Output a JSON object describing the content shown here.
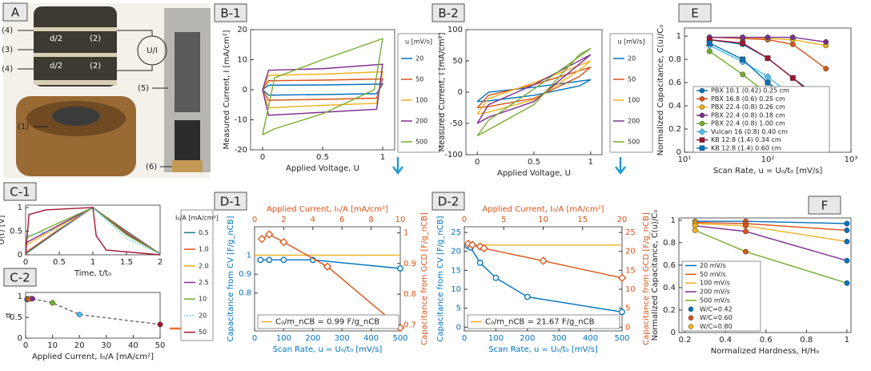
{
  "photo": {
    "panel": "A",
    "labels": [
      "(4)",
      "(3)",
      "(4)",
      "(1)",
      "(5)",
      "(6)",
      "d/2",
      "(2)",
      "d/2",
      "(2)",
      "U/I"
    ]
  },
  "chart_data": [
    {
      "type": "line",
      "panel": "B-1",
      "xlabel": "Applied Voltage, U",
      "ylabel": "Measured Current, I [mA/cm²]",
      "xlim": [
        -0.1,
        1.1
      ],
      "xticks": [
        0,
        0.5,
        1
      ],
      "ylim": [
        -20,
        20
      ],
      "yticks": [
        -20,
        -10,
        0,
        10,
        20
      ],
      "legend_title": "u [mV/s]",
      "series": [
        {
          "name": "20",
          "color": "#0072bd",
          "x": [
            0,
            0.05,
            0.5,
            1,
            0.95,
            0.5,
            0.05,
            0
          ],
          "values": [
            0,
            1.5,
            1.6,
            1.9,
            -1.3,
            -1.6,
            -1.8,
            0
          ]
        },
        {
          "name": "50",
          "color": "#d95319",
          "x": [
            0,
            0.05,
            0.5,
            1,
            0.95,
            0.5,
            0.05,
            0
          ],
          "values": [
            0,
            3,
            3.2,
            3.6,
            -2.8,
            -3.2,
            -3.5,
            0
          ]
        },
        {
          "name": "100",
          "color": "#edb120",
          "x": [
            0,
            0.05,
            0.5,
            1,
            0.95,
            0.5,
            0.05,
            0
          ],
          "values": [
            0,
            4.8,
            5.2,
            6,
            -4.5,
            -5.2,
            -6,
            0
          ]
        },
        {
          "name": "200",
          "color": "#7e2f8e",
          "x": [
            0,
            0.05,
            0.5,
            1,
            0.95,
            0.5,
            0.05,
            0
          ],
          "values": [
            0,
            6.5,
            7,
            8.5,
            -6.5,
            -7.5,
            -8.5,
            0
          ]
        },
        {
          "name": "500",
          "color": "#77ac30",
          "x": [
            0,
            0.1,
            0.5,
            1,
            0.93,
            0.5,
            0.1,
            0
          ],
          "values": [
            -15,
            4,
            10,
            17,
            0,
            -8,
            -13,
            -15
          ]
        }
      ]
    },
    {
      "type": "line",
      "panel": "B-2",
      "xlabel": "Applied Voltage, U",
      "ylabel": "Measured Current, I [mA/cm²]",
      "xlim": [
        -0.1,
        1.1
      ],
      "xticks": [
        0,
        0.5,
        1
      ],
      "ylim": [
        -100,
        100
      ],
      "yticks": [
        -100,
        -50,
        0,
        50,
        100
      ],
      "legend_title": "u [mV/s]",
      "series": [
        {
          "name": "20",
          "color": "#0072bd",
          "x": [
            0,
            0.1,
            0.5,
            1,
            0.9,
            0.5,
            0.1,
            0
          ],
          "values": [
            -15,
            0,
            8,
            20,
            10,
            -5,
            -14,
            -15
          ]
        },
        {
          "name": "50",
          "color": "#d95319",
          "x": [
            0,
            0.1,
            0.5,
            1,
            0.9,
            0.5,
            0.1,
            0
          ],
          "values": [
            -25,
            -5,
            12,
            40,
            25,
            -10,
            -23,
            -25
          ]
        },
        {
          "name": "100",
          "color": "#edb120",
          "x": [
            0,
            0.1,
            0.5,
            1,
            0.9,
            0.5,
            0.1,
            0
          ],
          "values": [
            -35,
            -10,
            15,
            50,
            35,
            -12,
            -32,
            -35
          ]
        },
        {
          "name": "200",
          "color": "#7e2f8e",
          "x": [
            0,
            0.1,
            0.5,
            1,
            0.9,
            0.5,
            0.1,
            0
          ],
          "values": [
            -50,
            -20,
            12,
            60,
            45,
            -15,
            -40,
            -50
          ]
        },
        {
          "name": "500",
          "color": "#77ac30",
          "x": [
            0,
            0.1,
            0.5,
            1,
            0.9,
            0.5,
            0.1,
            0
          ],
          "values": [
            -70,
            -45,
            5,
            70,
            60,
            -20,
            -60,
            -70
          ]
        }
      ]
    },
    {
      "type": "line",
      "panel": "E",
      "xlabel": "Scan Rate, u = U₀/t₀ [mV/s]",
      "ylabel": "Normalized Capacitance, C(u)/C₀",
      "log_x": true,
      "xlim": [
        10,
        1000
      ],
      "xticks": [
        {
          "value": 10,
          "label": "10¹"
        },
        {
          "value": 100,
          "label": "10²"
        },
        {
          "value": 1000,
          "label": "10³"
        }
      ],
      "ylim": [
        0,
        1.07
      ],
      "yticks": [
        0,
        0.2,
        0.4,
        0.6,
        0.8,
        1
      ],
      "series": [
        {
          "name": "PBX 10.1 (0.42) 0.25 cm",
          "color": "#0072bd",
          "marker": "circle",
          "x": [
            20,
            50,
            100,
            200,
            500
          ],
          "values": [
            0.97,
            0.93,
            0.81,
            0.64,
            0.43
          ]
        },
        {
          "name": "PBX 16.8 (0.6) 0.25 cm",
          "color": "#d95319",
          "marker": "circle",
          "x": [
            20,
            50,
            100,
            200,
            500
          ],
          "values": [
            0.99,
            0.98,
            0.97,
            0.93,
            0.72
          ]
        },
        {
          "name": "PBX 22.4 (0.8) 0.26 cm",
          "color": "#edb120",
          "marker": "circle",
          "x": [
            20,
            50,
            100,
            200,
            500
          ],
          "values": [
            0.99,
            0.99,
            0.98,
            0.97,
            0.92
          ]
        },
        {
          "name": "PBX 22.4 (0.8) 0.18 cm",
          "color": "#7e2f8e",
          "marker": "circle",
          "x": [
            20,
            50,
            100,
            200,
            500
          ],
          "values": [
            0.99,
            0.99,
            0.99,
            0.99,
            0.95
          ]
        },
        {
          "name": "PBX 22.4 (0.8) 1.00 cm",
          "color": "#77ac30",
          "marker": "circle",
          "x": [
            20,
            50,
            100,
            200,
            500
          ],
          "values": [
            0.87,
            0.67,
            0.5,
            0.33,
            0.19
          ]
        },
        {
          "name": "Vulcan 16 (0.8) 0.40 cm",
          "color": "#4dbeee",
          "marker": "diamond",
          "x": [
            20,
            50,
            100,
            200,
            500
          ],
          "values": [
            0.92,
            0.78,
            0.65,
            0.48,
            0.28
          ]
        },
        {
          "name": "KB 12.8 (1.4) 0.34 cm",
          "color": "#a2142f",
          "marker": "square",
          "x": [
            20,
            50,
            100,
            200,
            500
          ],
          "values": [
            0.97,
            0.94,
            0.81,
            0.64,
            0.4
          ]
        },
        {
          "name": "KB 12.8 (1.4) 0.60 cm",
          "color": "#0072bd",
          "marker": "square",
          "x": [
            20,
            50,
            100,
            200,
            500
          ],
          "values": [
            0.94,
            0.8,
            0.6,
            0.44,
            0.19
          ]
        }
      ]
    },
    {
      "type": "line",
      "panel": "C-1",
      "xlabel": "Time, t/t₀",
      "ylabel": "U(t) [V]",
      "xlim": [
        0,
        2
      ],
      "xticks": [
        0,
        0.5,
        1,
        1.5,
        2
      ],
      "ylim": [
        0,
        1.05
      ],
      "yticks": [
        0,
        0.5,
        1
      ],
      "legend_title": "I₀/A [mA/cm²]",
      "series": [
        {
          "name": "0.5",
          "color": "#1f7a8c",
          "x": [
            0,
            0.5,
            1,
            1.5,
            2
          ],
          "values": [
            0.02,
            0.52,
            1,
            0.5,
            0.02
          ]
        },
        {
          "name": "1.0",
          "color": "#d95319",
          "x": [
            0,
            0.5,
            1,
            1.5,
            2
          ],
          "values": [
            0.05,
            0.54,
            1,
            0.48,
            0.02
          ]
        },
        {
          "name": "2.0",
          "color": "#edb120",
          "x": [
            0,
            0.5,
            1,
            1.5,
            2
          ],
          "values": [
            0.2,
            0.6,
            1,
            0.46,
            0.02
          ]
        },
        {
          "name": "2.5",
          "color": "#7e2f8e",
          "x": [
            0,
            0.5,
            1,
            1.5,
            2
          ],
          "values": [
            0.25,
            0.63,
            1,
            0.45,
            0.02
          ]
        },
        {
          "name": "10",
          "color": "#77ac30",
          "x": [
            0,
            0.5,
            1,
            1.5,
            2
          ],
          "values": [
            0.35,
            0.68,
            1,
            0.42,
            0.02
          ]
        },
        {
          "name": "20",
          "color": "#4dbeee",
          "dash": "dotted",
          "x": [
            0,
            0.5,
            1,
            1.5,
            2
          ],
          "values": [
            0.4,
            0.55,
            1,
            0.35,
            0.02
          ]
        },
        {
          "name": "50",
          "color": "#a2142f",
          "x": [
            0,
            0.05,
            0.3,
            1,
            1.05,
            1.2,
            2
          ],
          "values": [
            0,
            0.85,
            0.95,
            1,
            0.4,
            0.1,
            0
          ]
        }
      ]
    },
    {
      "type": "line",
      "panel": "C-2",
      "xlabel": "Applied Current, I₀/A [mA/cm²]",
      "ylabel": "α",
      "xlim": [
        0,
        50
      ],
      "xticks": [
        0,
        10,
        20,
        30,
        40,
        50
      ],
      "ylim": [
        0,
        1.1
      ],
      "yticks": [
        0,
        0.5,
        1
      ],
      "series": [
        {
          "color": "#666666",
          "dash": "dashed",
          "marker": "circle",
          "colors": [
            "#1f7a8c",
            "#d95319",
            "#edb120",
            "#7e2f8e",
            "#77ac30",
            "#4dbeee",
            "#a2142f"
          ],
          "x": [
            0.5,
            1,
            2,
            2.5,
            10,
            20,
            50
          ],
          "values": [
            0.93,
            0.94,
            0.95,
            0.95,
            0.85,
            0.57,
            0.33
          ]
        }
      ]
    },
    {
      "type": "line",
      "panel": "D-1",
      "xlabel": "Scan Rate, u = U₀/t₀ [mV/s]",
      "ylabel": "Capacitance from CV [F/g_nCB]",
      "x2label": "Applied Current, I₀/A [mA/cm²]",
      "y2label": "Capacitance from GCD [F/g_nCB]",
      "axis_color": "#0072bd",
      "axis2_color": "#d95319",
      "xlim": [
        0,
        500
      ],
      "xticks": [
        0,
        100,
        200,
        300,
        400,
        500
      ],
      "ylim": [
        0.6,
        1.15
      ],
      "yticks": [
        0.8,
        0.9,
        1
      ],
      "x2lim": [
        0,
        10
      ],
      "x2ticks": [
        0,
        2,
        4,
        6,
        8,
        10
      ],
      "y2lim": [
        0.68,
        1.02
      ],
      "y2ticks": [
        0.7,
        0.8,
        0.9,
        1
      ],
      "series": [
        {
          "name": "C₀/m_nCB = 0.99 F/g_nCB",
          "color": "#edb120",
          "x": [
            0,
            500
          ],
          "values": [
            1,
            1
          ]
        },
        {
          "color": "#0072bd",
          "marker": "circle",
          "marker_style": "open",
          "x": [
            20,
            50,
            100,
            200,
            500
          ],
          "values": [
            0.975,
            0.975,
            0.975,
            0.975,
            0.93
          ]
        },
        {
          "color": "#d95319",
          "marker": "diamond",
          "marker_style": "open",
          "axis": "y2",
          "x": [
            0.5,
            1,
            2,
            5,
            10
          ],
          "values": [
            0.98,
            0.995,
            0.97,
            0.89,
            0.69
          ]
        }
      ]
    },
    {
      "type": "line",
      "panel": "D-2",
      "xlabel": "Scan Rate, u = U₀/t₀ [mV/s]",
      "ylabel": "Capacitance from CV [F/g_nCB]",
      "x2label": "Applied Current, I₀/A [mA/cm²]",
      "y2label": "Capacitance from GCD [F/g_nCB]",
      "axis_color": "#0072bd",
      "axis2_color": "#d95319",
      "xlim": [
        0,
        500
      ],
      "xticks": [
        0,
        100,
        200,
        300,
        400,
        500
      ],
      "ylim": [
        -1,
        26.5
      ],
      "yticks": [
        0,
        5,
        10,
        15,
        20,
        25
      ],
      "x2lim": [
        0,
        20
      ],
      "x2ticks": [
        0,
        5,
        10,
        15,
        20
      ],
      "y2lim": [
        -1,
        26.5
      ],
      "y2ticks": [
        0,
        5,
        10,
        15,
        20,
        25
      ],
      "series": [
        {
          "name": "C₀/m_nCB = 21.67 F/g_nCB",
          "color": "#edb120",
          "x": [
            0,
            500
          ],
          "values": [
            21.67,
            21.67
          ]
        },
        {
          "color": "#0072bd",
          "marker": "circle",
          "marker_style": "open",
          "x": [
            10,
            20,
            50,
            100,
            200,
            500
          ],
          "values": [
            21.5,
            21,
            17,
            13,
            8,
            4
          ]
        },
        {
          "color": "#d95319",
          "marker": "diamond",
          "marker_style": "open",
          "axis": "y2",
          "x": [
            0.5,
            1,
            2,
            2.5,
            10,
            20
          ],
          "values": [
            22,
            21.7,
            21.3,
            20.8,
            17.5,
            13
          ]
        }
      ]
    },
    {
      "type": "line",
      "panel": "F",
      "xlabel": "Normalized Hardness, H/H₀",
      "ylabel": "Normalized Capacitance, C(u)/C₀",
      "xlim": [
        0.17,
        1.02
      ],
      "xticks": [
        0.2,
        0.4,
        0.6,
        0.8,
        1
      ],
      "ylim": [
        0,
        1.02
      ],
      "yticks": [
        0,
        0.2,
        0.4,
        0.6,
        0.8,
        1
      ],
      "series": [
        {
          "name": "20 mV/s",
          "color": "#0072bd",
          "x": [
            0.25,
            0.5,
            1
          ],
          "values": [
            0.99,
            0.99,
            0.97
          ]
        },
        {
          "name": "50 mV/s",
          "color": "#d95319",
          "x": [
            0.25,
            0.5,
            1
          ],
          "values": [
            0.98,
            0.97,
            0.91
          ]
        },
        {
          "name": "100 mV/s",
          "color": "#edb120",
          "x": [
            0.25,
            0.5,
            1
          ],
          "values": [
            0.97,
            0.95,
            0.81
          ]
        },
        {
          "name": "200 mV/s",
          "color": "#7e2f8e",
          "x": [
            0.25,
            0.5,
            1
          ],
          "values": [
            0.95,
            0.9,
            0.64
          ]
        },
        {
          "name": "500 mV/s",
          "color": "#77ac30",
          "x": [
            0.25,
            0.5,
            1
          ],
          "values": [
            0.91,
            0.72,
            0.44
          ]
        },
        {
          "name": "W/C=0.42",
          "color": "#0072bd",
          "line": false,
          "marker": "circle",
          "x": [
            1,
            1,
            1,
            1,
            1
          ],
          "values": [
            0.97,
            0.91,
            0.81,
            0.64,
            0.44
          ]
        },
        {
          "name": "W/C=0.60",
          "color": "#d95319",
          "line": false,
          "marker": "circle",
          "x": [
            0.5,
            0.5,
            0.5,
            0.5,
            0.5
          ],
          "values": [
            0.99,
            0.97,
            0.95,
            0.9,
            0.72
          ]
        },
        {
          "name": "W/C=0.80",
          "color": "#edb120",
          "line": false,
          "marker": "circle",
          "x": [
            0.25,
            0.25,
            0.25,
            0.25,
            0.25
          ],
          "values": [
            0.99,
            0.98,
            0.97,
            0.95,
            0.91
          ]
        }
      ]
    }
  ]
}
